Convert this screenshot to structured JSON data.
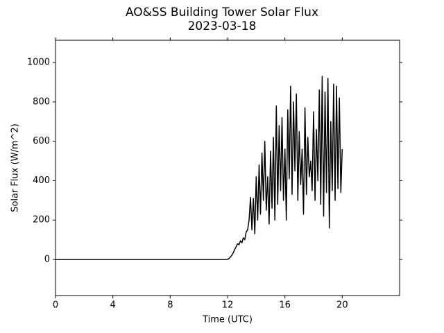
{
  "chart_data": {
    "type": "line",
    "title": "AO&SS Building Tower Solar Flux",
    "subtitle": "2023-03-18",
    "x_label": "Time (UTC)",
    "y_label": "Solar Flux (W/m^2)",
    "xlim": [
      0,
      24
    ],
    "xticks": [
      0,
      4,
      8,
      12,
      16,
      20
    ],
    "ylim": [
      -183,
      1113
    ],
    "yticks": [
      0,
      200,
      400,
      600,
      800,
      1000
    ],
    "series": [
      {
        "name": "Solar Flux",
        "color": "#000000",
        "x": [
          0,
          11.9,
          12.0,
          12.1,
          12.2,
          12.3,
          12.4,
          12.5,
          12.6,
          12.7,
          12.8,
          12.9,
          13.0,
          13.1,
          13.2,
          13.3,
          13.4,
          13.5,
          13.6,
          13.7,
          13.8,
          13.9,
          14.0,
          14.1,
          14.2,
          14.3,
          14.4,
          14.5,
          14.6,
          14.7,
          14.8,
          14.9,
          15.0,
          15.1,
          15.2,
          15.3,
          15.4,
          15.5,
          15.6,
          15.7,
          15.8,
          15.9,
          16.0,
          16.1,
          16.2,
          16.3,
          16.4,
          16.5,
          16.6,
          16.7,
          16.8,
          16.9,
          17.0,
          17.1,
          17.2,
          17.3,
          17.4,
          17.5,
          17.6,
          17.7,
          17.8,
          17.9,
          18.0,
          18.1,
          18.2,
          18.3,
          18.4,
          18.5,
          18.6,
          18.7,
          18.8,
          18.9,
          19.0,
          19.1,
          19.2,
          19.3,
          19.4,
          19.5,
          19.6,
          19.7,
          19.8,
          19.9,
          20.0
        ],
        "values": [
          0,
          0,
          1,
          5,
          12,
          22,
          35,
          50,
          65,
          80,
          75,
          95,
          85,
          110,
          100,
          140,
          150,
          200,
          315,
          150,
          310,
          130,
          420,
          200,
          480,
          230,
          540,
          300,
          600,
          250,
          420,
          180,
          550,
          260,
          620,
          200,
          780,
          280,
          680,
          350,
          720,
          300,
          560,
          200,
          760,
          410,
          880,
          330,
          800,
          450,
          840,
          300,
          650,
          380,
          560,
          230,
          770,
          330,
          620,
          420,
          500,
          350,
          750,
          300,
          660,
          400,
          860,
          280,
          930,
          220,
          850,
          340,
          920,
          160,
          700,
          350,
          890,
          300,
          880,
          360,
          820,
          340,
          560
        ]
      }
    ]
  }
}
